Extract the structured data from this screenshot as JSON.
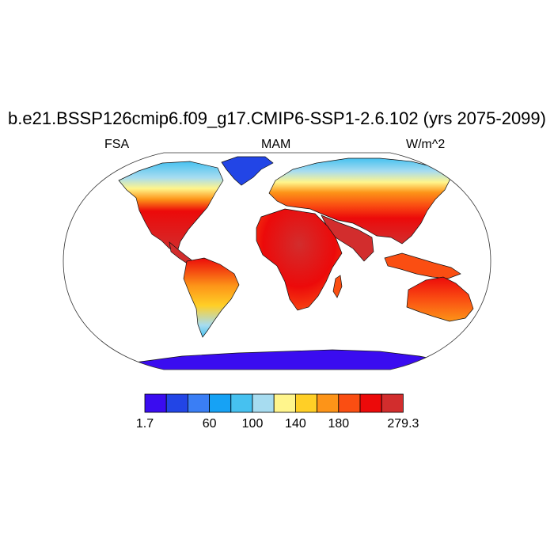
{
  "title": "b.e21.BSSP126cmip6.f09_g17.CMIP6-SSP1-2.6.102 (yrs 2075-2099)",
  "subtitle": {
    "left": "FSA",
    "center": "MAM",
    "right": "W/m^2"
  },
  "colorbar": {
    "colors": [
      "#3a0cf0",
      "#2245e6",
      "#3a7ef5",
      "#16a2f5",
      "#46c1f0",
      "#a7dcf0",
      "#fff58c",
      "#ffcf26",
      "#fd9418",
      "#fa4e12",
      "#ec0a0a",
      "#d22d2d"
    ],
    "labels": [
      "1.7",
      "60",
      "100",
      "140",
      "180",
      "279.3"
    ]
  },
  "chart_data": {
    "type": "heatmap",
    "variable": "FSA",
    "season": "MAM",
    "units": "W/m^2",
    "range": [
      1.7,
      279.3
    ],
    "contour_boundaries": [
      1.7,
      60,
      100,
      140,
      180,
      279.3
    ],
    "projection": "Robinson"
  }
}
